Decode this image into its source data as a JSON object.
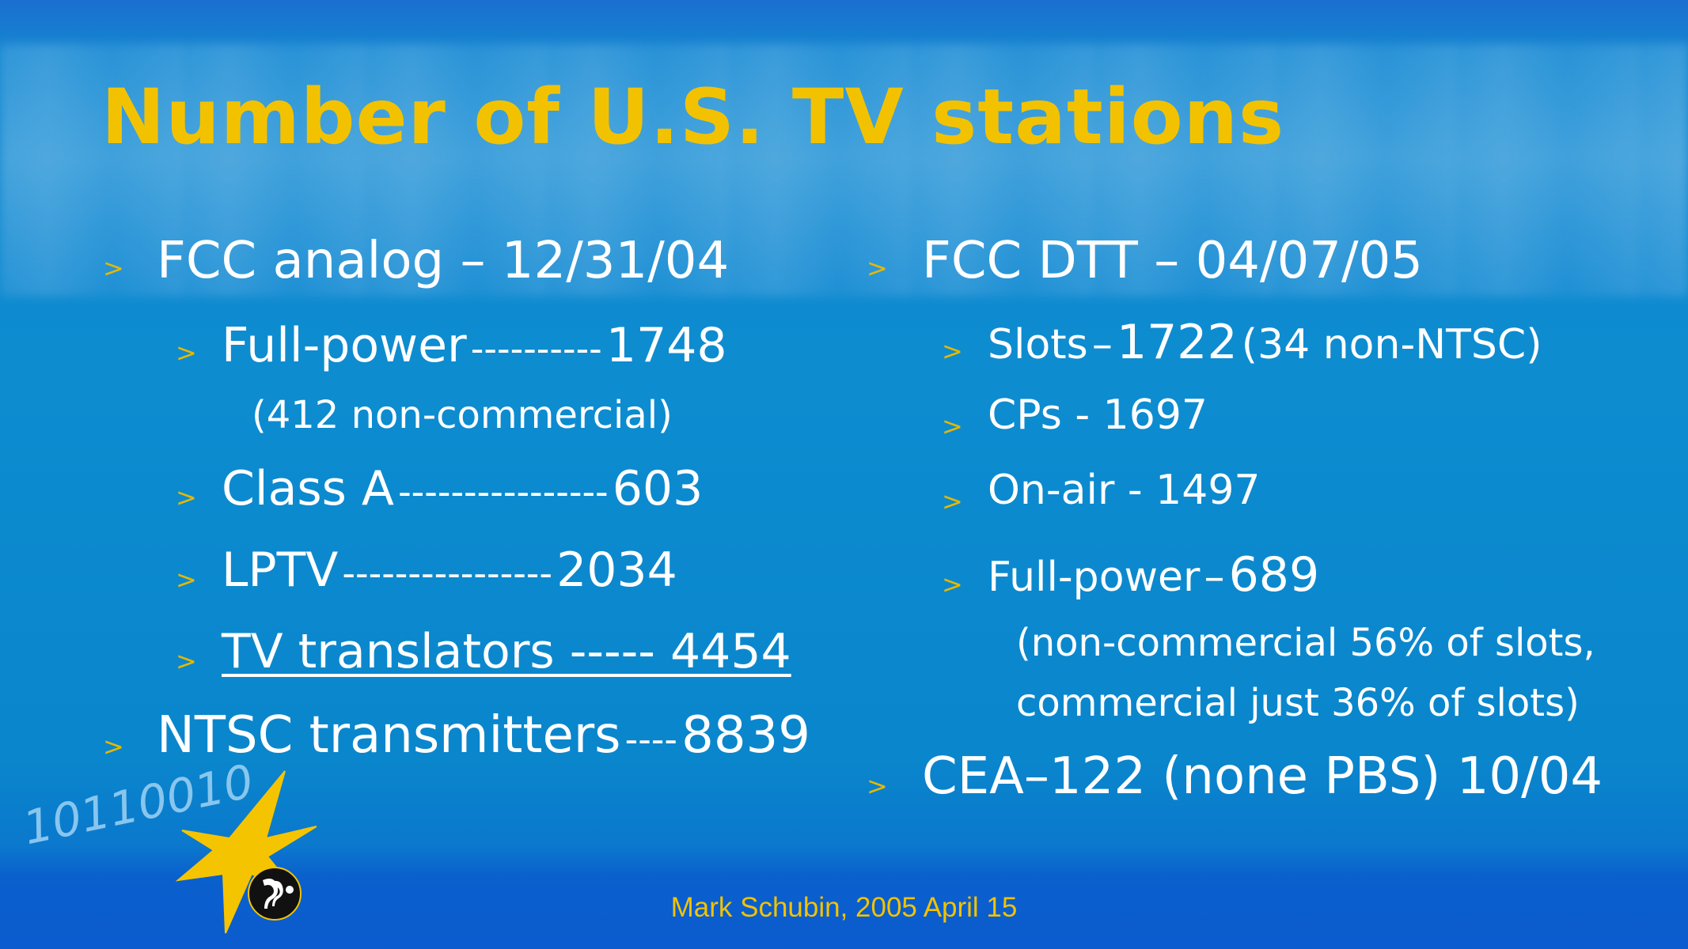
{
  "slide": {
    "title": "Number of U.S. TV stations",
    "footer": "Mark Schubin, 2005 April 15",
    "colors": {
      "title": "#f2c200",
      "bullet": "#e5b800",
      "text": "#ffffff",
      "background": "#0d8cd0"
    }
  },
  "bullet_glyph": ">",
  "left": {
    "analog": {
      "label": "FCC analog",
      "sep": "–",
      "date": "12/31/04"
    },
    "full_power": {
      "label": "Full-power",
      "dashes": "----------",
      "value": "1748"
    },
    "full_power_note": "(412 non-commercial)",
    "class_a": {
      "label": "Class A",
      "dashes": "----------------",
      "value": "603"
    },
    "lptv": {
      "label": "LPTV",
      "dashes": "----------------",
      "value": "2034"
    },
    "translators": {
      "label": "TV translators ----- 4454"
    },
    "ntsc": {
      "label": "NTSC transmitters",
      "dashes": "----",
      "value": "8839"
    }
  },
  "right": {
    "dtt": {
      "label": "FCC DTT",
      "sep": "–",
      "date": "04/07/05"
    },
    "slots": {
      "label": "Slots",
      "sep": "–",
      "value": "1722",
      "note": "(34 non-NTSC)"
    },
    "cps": {
      "label": "CPs - 1697"
    },
    "onair": {
      "label": "On-air - 1497"
    },
    "full_power": {
      "label": "Full-power",
      "sep": "–",
      "value": "689"
    },
    "note1": "(non-commercial 56% of slots,",
    "note2": "commercial just 36% of slots)",
    "cea": {
      "label": "CEA",
      "sep": "–",
      "num": "122",
      "paren": "(none PBS)",
      "date": "10/04"
    }
  },
  "logo": {
    "binary_text": "10110010",
    "icon": "pbs-star-logo-icon"
  }
}
